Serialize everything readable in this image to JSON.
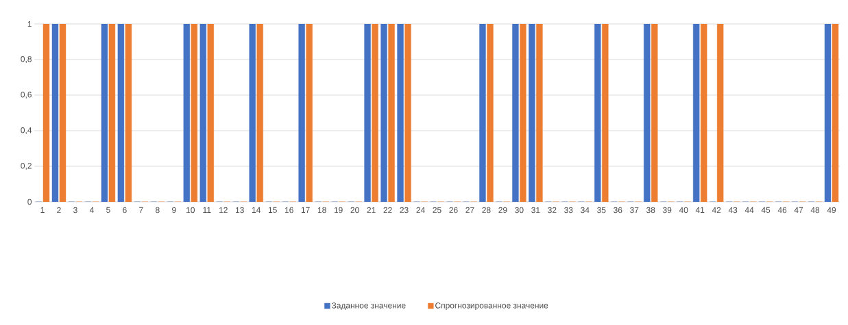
{
  "chart_data": {
    "type": "bar",
    "categories": [
      "1",
      "2",
      "3",
      "4",
      "5",
      "6",
      "7",
      "8",
      "9",
      "10",
      "11",
      "12",
      "13",
      "14",
      "15",
      "16",
      "17",
      "18",
      "19",
      "20",
      "21",
      "22",
      "23",
      "24",
      "25",
      "26",
      "27",
      "28",
      "29",
      "30",
      "31",
      "32",
      "33",
      "34",
      "35",
      "36",
      "37",
      "38",
      "39",
      "40",
      "41",
      "42",
      "43",
      "44",
      "45",
      "46",
      "47",
      "48",
      "49"
    ],
    "series": [
      {
        "name": "Заданное значение",
        "color": "#4472c4",
        "values": [
          0,
          1,
          0,
          0,
          1,
          1,
          0,
          0,
          0,
          1,
          1,
          0,
          0,
          1,
          0,
          0,
          1,
          0,
          0,
          0,
          1,
          1,
          1,
          0,
          0,
          0,
          0,
          1,
          0,
          1,
          1,
          0,
          0,
          0,
          1,
          0,
          0,
          1,
          0,
          0,
          1,
          0,
          0,
          0,
          0,
          0,
          0,
          0,
          1
        ]
      },
      {
        "name": "Спрогнозированное значение",
        "color": "#ed7d31",
        "values": [
          1,
          1,
          0,
          0,
          1,
          1,
          0,
          0,
          0,
          1,
          1,
          0,
          0,
          1,
          0,
          0,
          1,
          0,
          0,
          0,
          1,
          1,
          1,
          0,
          0,
          0,
          0,
          1,
          0,
          1,
          1,
          0,
          0,
          0,
          1,
          0,
          0,
          1,
          0,
          0,
          1,
          1,
          0,
          0,
          0,
          0,
          0,
          0,
          1
        ]
      }
    ],
    "ylim": [
      0,
      1
    ],
    "yticks": [
      0,
      {
        "value": 0.2,
        "label": "0,2"
      },
      {
        "value": 0.4,
        "label": "0,4"
      },
      {
        "value": 0.6,
        "label": "0,6"
      },
      {
        "value": 0.8,
        "label": "0,8"
      },
      1
    ],
    "grid": "y",
    "legend": "bottom"
  }
}
